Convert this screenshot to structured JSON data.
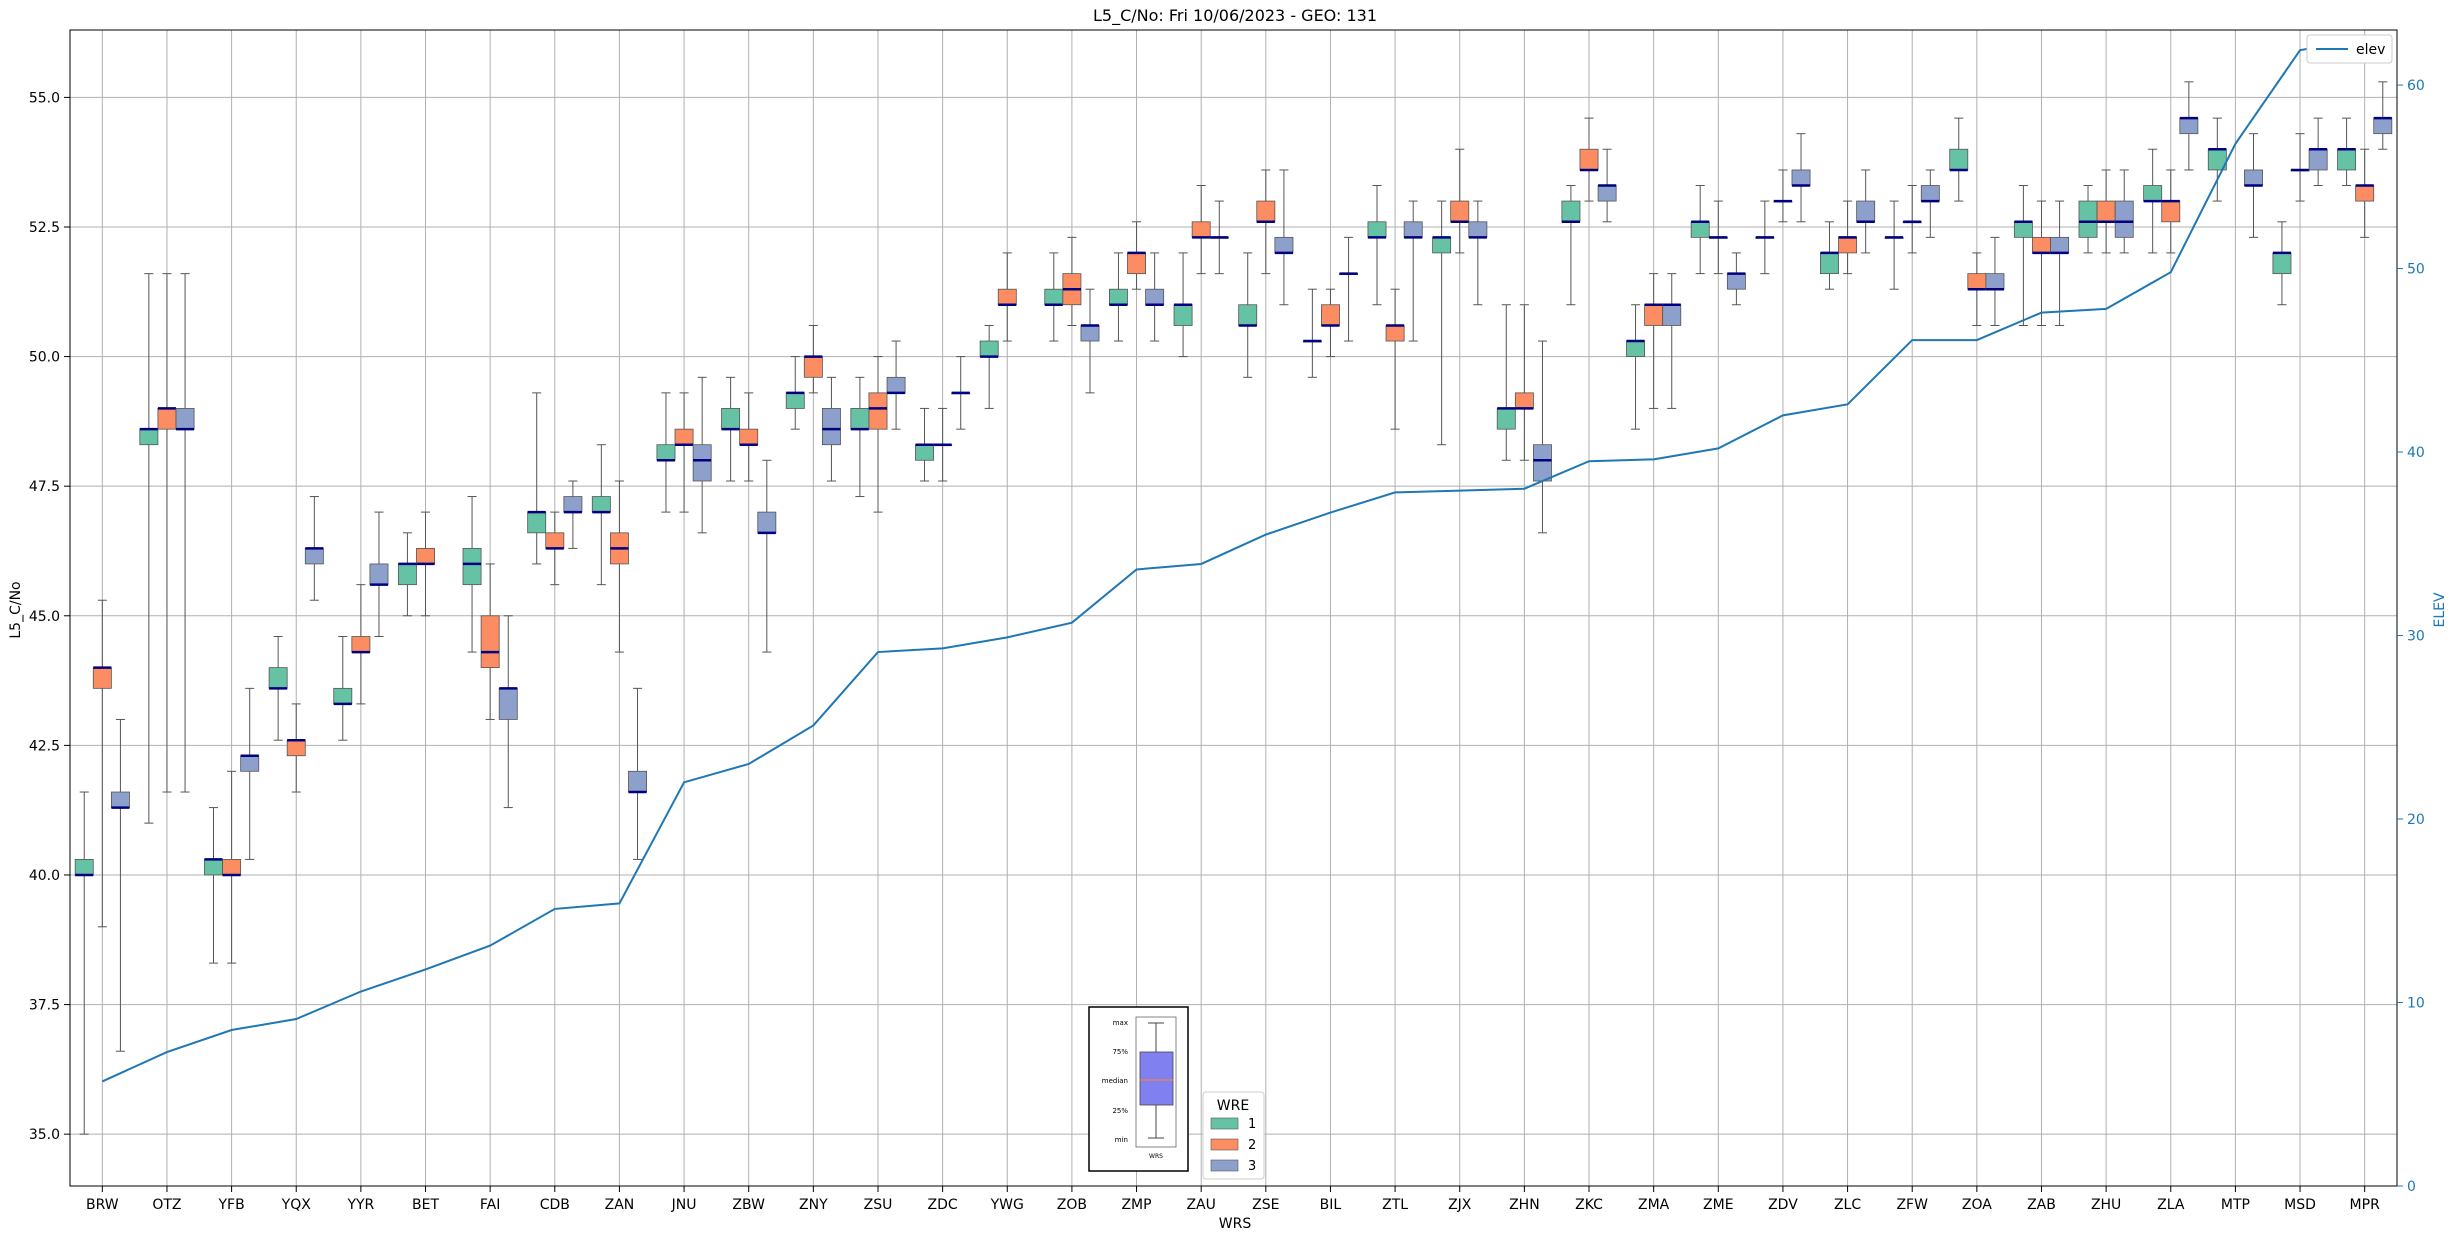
{
  "chart_data": {
    "type": "box",
    "title": "L5_C/No: Fri 10/06/2023 - GEO: 131",
    "xlabel": "WRS",
    "ylabel": "L5_C/No",
    "ylabel_right": "ELEV",
    "categories": [
      "BRW",
      "OTZ",
      "YFB",
      "YQX",
      "YYR",
      "BET",
      "FAI",
      "CDB",
      "ZAN",
      "JNU",
      "ZBW",
      "ZNY",
      "ZSU",
      "ZDC",
      "YWG",
      "ZOB",
      "ZMP",
      "ZAU",
      "ZSE",
      "BIL",
      "ZTL",
      "ZJX",
      "ZHN",
      "ZKC",
      "ZMA",
      "ZME",
      "ZDV",
      "ZLC",
      "ZFW",
      "ZOA",
      "ZAB",
      "ZHU",
      "ZLA",
      "MTP",
      "MSD",
      "MPR"
    ],
    "ylim": [
      34,
      56.3
    ],
    "yticks": [
      "35.0",
      "37.5",
      "40.0",
      "42.5",
      "45.0",
      "47.5",
      "50.0",
      "52.5",
      "55.0"
    ],
    "ylim_right": [
      0,
      63
    ],
    "yticks_right": [
      "0",
      "10",
      "20",
      "30",
      "40",
      "50",
      "60"
    ],
    "grid": true,
    "legend_title": "WRE",
    "legend_placement": "bottom-center",
    "series": [
      {
        "name": "1",
        "color": "#66c2a5"
      },
      {
        "name": "2",
        "color": "#fc8d62"
      },
      {
        "name": "3",
        "color": "#8da0cb"
      }
    ],
    "boxes": [
      {
        "cat": "BRW",
        "s": 0,
        "min": 35.0,
        "q1": 40.0,
        "med": 40.0,
        "q3": 40.3,
        "max": 41.6
      },
      {
        "cat": "BRW",
        "s": 1,
        "min": 39.0,
        "q1": 43.6,
        "med": 44.0,
        "q3": 44.0,
        "max": 45.3
      },
      {
        "cat": "BRW",
        "s": 2,
        "min": 36.6,
        "q1": 41.3,
        "med": 41.3,
        "q3": 41.6,
        "max": 43.0
      },
      {
        "cat": "OTZ",
        "s": 0,
        "min": 41.0,
        "q1": 48.3,
        "med": 48.6,
        "q3": 48.6,
        "max": 51.6
      },
      {
        "cat": "OTZ",
        "s": 1,
        "min": 41.6,
        "q1": 48.6,
        "med": 49.0,
        "q3": 49.0,
        "max": 51.6
      },
      {
        "cat": "OTZ",
        "s": 2,
        "min": 41.6,
        "q1": 48.6,
        "med": 48.6,
        "q3": 49.0,
        "max": 51.6
      },
      {
        "cat": "YFB",
        "s": 0,
        "min": 38.3,
        "q1": 40.0,
        "med": 40.3,
        "q3": 40.3,
        "max": 41.3
      },
      {
        "cat": "YFB",
        "s": 1,
        "min": 38.3,
        "q1": 40.0,
        "med": 40.0,
        "q3": 40.3,
        "max": 42.0
      },
      {
        "cat": "YFB",
        "s": 2,
        "min": 40.3,
        "q1": 42.0,
        "med": 42.3,
        "q3": 42.3,
        "max": 43.6
      },
      {
        "cat": "YQX",
        "s": 0,
        "min": 42.6,
        "q1": 43.6,
        "med": 43.6,
        "q3": 44.0,
        "max": 44.6
      },
      {
        "cat": "YQX",
        "s": 1,
        "min": 41.6,
        "q1": 42.3,
        "med": 42.6,
        "q3": 42.6,
        "max": 43.3
      },
      {
        "cat": "YQX",
        "s": 2,
        "min": 45.3,
        "q1": 46.0,
        "med": 46.3,
        "q3": 46.3,
        "max": 47.3
      },
      {
        "cat": "YYR",
        "s": 0,
        "min": 42.6,
        "q1": 43.3,
        "med": 43.3,
        "q3": 43.6,
        "max": 44.6
      },
      {
        "cat": "YYR",
        "s": 1,
        "min": 43.3,
        "q1": 44.3,
        "med": 44.3,
        "q3": 44.6,
        "max": 45.6
      },
      {
        "cat": "YYR",
        "s": 2,
        "min": 44.6,
        "q1": 45.6,
        "med": 45.6,
        "q3": 46.0,
        "max": 47.0
      },
      {
        "cat": "BET",
        "s": 0,
        "min": 45.0,
        "q1": 45.6,
        "med": 46.0,
        "q3": 46.0,
        "max": 46.6
      },
      {
        "cat": "BET",
        "s": 1,
        "min": 45.0,
        "q1": 46.0,
        "med": 46.0,
        "q3": 46.3,
        "max": 47.0
      },
      {
        "cat": "FAI",
        "s": 0,
        "min": 44.3,
        "q1": 45.6,
        "med": 46.0,
        "q3": 46.3,
        "max": 47.3
      },
      {
        "cat": "FAI",
        "s": 1,
        "min": 43.0,
        "q1": 44.0,
        "med": 44.3,
        "q3": 45.0,
        "max": 46.0
      },
      {
        "cat": "FAI",
        "s": 2,
        "min": 41.3,
        "q1": 43.0,
        "med": 43.6,
        "q3": 43.6,
        "max": 45.0
      },
      {
        "cat": "CDB",
        "s": 0,
        "min": 46.0,
        "q1": 46.6,
        "med": 47.0,
        "q3": 47.0,
        "max": 49.3
      },
      {
        "cat": "CDB",
        "s": 1,
        "min": 45.6,
        "q1": 46.3,
        "med": 46.3,
        "q3": 46.6,
        "max": 47.0
      },
      {
        "cat": "CDB",
        "s": 2,
        "min": 46.3,
        "q1": 47.0,
        "med": 47.0,
        "q3": 47.3,
        "max": 47.6
      },
      {
        "cat": "ZAN",
        "s": 0,
        "min": 45.6,
        "q1": 47.0,
        "med": 47.0,
        "q3": 47.3,
        "max": 48.3
      },
      {
        "cat": "ZAN",
        "s": 1,
        "min": 44.3,
        "q1": 46.0,
        "med": 46.3,
        "q3": 46.6,
        "max": 47.6
      },
      {
        "cat": "ZAN",
        "s": 2,
        "min": 40.3,
        "q1": 41.6,
        "med": 41.6,
        "q3": 42.0,
        "max": 43.6
      },
      {
        "cat": "JNU",
        "s": 0,
        "min": 47.0,
        "q1": 48.0,
        "med": 48.0,
        "q3": 48.3,
        "max": 49.3
      },
      {
        "cat": "JNU",
        "s": 1,
        "min": 47.0,
        "q1": 48.3,
        "med": 48.3,
        "q3": 48.6,
        "max": 49.3
      },
      {
        "cat": "JNU",
        "s": 2,
        "min": 46.6,
        "q1": 47.6,
        "med": 48.0,
        "q3": 48.3,
        "max": 49.6
      },
      {
        "cat": "ZBW",
        "s": 0,
        "min": 47.6,
        "q1": 48.6,
        "med": 48.6,
        "q3": 49.0,
        "max": 49.6
      },
      {
        "cat": "ZBW",
        "s": 1,
        "min": 47.6,
        "q1": 48.3,
        "med": 48.3,
        "q3": 48.6,
        "max": 49.3
      },
      {
        "cat": "ZBW",
        "s": 2,
        "min": 44.3,
        "q1": 46.6,
        "med": 46.6,
        "q3": 47.0,
        "max": 48.0
      },
      {
        "cat": "ZNY",
        "s": 0,
        "min": 48.6,
        "q1": 49.0,
        "med": 49.3,
        "q3": 49.3,
        "max": 50.0
      },
      {
        "cat": "ZNY",
        "s": 1,
        "min": 49.3,
        "q1": 49.6,
        "med": 50.0,
        "q3": 50.0,
        "max": 50.6
      },
      {
        "cat": "ZNY",
        "s": 2,
        "min": 47.6,
        "q1": 48.3,
        "med": 48.6,
        "q3": 49.0,
        "max": 49.6
      },
      {
        "cat": "ZSU",
        "s": 0,
        "min": 47.3,
        "q1": 48.6,
        "med": 48.6,
        "q3": 49.0,
        "max": 49.6
      },
      {
        "cat": "ZSU",
        "s": 1,
        "min": 47.0,
        "q1": 48.6,
        "med": 49.0,
        "q3": 49.3,
        "max": 50.0
      },
      {
        "cat": "ZSU",
        "s": 2,
        "min": 48.6,
        "q1": 49.3,
        "med": 49.3,
        "q3": 49.6,
        "max": 50.3
      },
      {
        "cat": "ZDC",
        "s": 0,
        "min": 47.6,
        "q1": 48.0,
        "med": 48.3,
        "q3": 48.3,
        "max": 49.0
      },
      {
        "cat": "ZDC",
        "s": 1,
        "min": 47.6,
        "q1": 48.3,
        "med": 48.3,
        "q3": 48.3,
        "max": 49.0
      },
      {
        "cat": "ZDC",
        "s": 2,
        "min": 48.6,
        "q1": 49.3,
        "med": 49.3,
        "q3": 49.3,
        "max": 50.0
      },
      {
        "cat": "YWG",
        "s": 0,
        "min": 49.0,
        "q1": 50.0,
        "med": 50.0,
        "q3": 50.3,
        "max": 50.6
      },
      {
        "cat": "YWG",
        "s": 1,
        "min": 50.3,
        "q1": 51.0,
        "med": 51.0,
        "q3": 51.3,
        "max": 52.0
      },
      {
        "cat": "ZOB",
        "s": 0,
        "min": 50.3,
        "q1": 51.0,
        "med": 51.0,
        "q3": 51.3,
        "max": 52.0
      },
      {
        "cat": "ZOB",
        "s": 1,
        "min": 50.6,
        "q1": 51.0,
        "med": 51.3,
        "q3": 51.6,
        "max": 52.3
      },
      {
        "cat": "ZOB",
        "s": 2,
        "min": 49.3,
        "q1": 50.3,
        "med": 50.6,
        "q3": 50.6,
        "max": 51.3
      },
      {
        "cat": "ZMP",
        "s": 0,
        "min": 50.3,
        "q1": 51.0,
        "med": 51.0,
        "q3": 51.3,
        "max": 52.0
      },
      {
        "cat": "ZMP",
        "s": 1,
        "min": 51.3,
        "q1": 51.6,
        "med": 52.0,
        "q3": 52.0,
        "max": 52.6
      },
      {
        "cat": "ZMP",
        "s": 2,
        "min": 50.3,
        "q1": 51.0,
        "med": 51.0,
        "q3": 51.3,
        "max": 52.0
      },
      {
        "cat": "ZAU",
        "s": 0,
        "min": 50.0,
        "q1": 50.6,
        "med": 51.0,
        "q3": 51.0,
        "max": 52.0
      },
      {
        "cat": "ZAU",
        "s": 1,
        "min": 51.6,
        "q1": 52.3,
        "med": 52.3,
        "q3": 52.6,
        "max": 53.3
      },
      {
        "cat": "ZAU",
        "s": 2,
        "min": 51.6,
        "q1": 52.3,
        "med": 52.3,
        "q3": 52.3,
        "max": 53.0
      },
      {
        "cat": "ZSE",
        "s": 0,
        "min": 49.6,
        "q1": 50.6,
        "med": 50.6,
        "q3": 51.0,
        "max": 52.0
      },
      {
        "cat": "ZSE",
        "s": 1,
        "min": 51.6,
        "q1": 52.6,
        "med": 52.6,
        "q3": 53.0,
        "max": 53.6
      },
      {
        "cat": "ZSE",
        "s": 2,
        "min": 51.0,
        "q1": 52.0,
        "med": 52.0,
        "q3": 52.3,
        "max": 53.6
      },
      {
        "cat": "BIL",
        "s": 0,
        "min": 49.6,
        "q1": 50.3,
        "med": 50.3,
        "q3": 50.3,
        "max": 51.3
      },
      {
        "cat": "BIL",
        "s": 1,
        "min": 50.0,
        "q1": 50.6,
        "med": 50.6,
        "q3": 51.0,
        "max": 51.3
      },
      {
        "cat": "BIL",
        "s": 2,
        "min": 50.3,
        "q1": 51.6,
        "med": 51.6,
        "q3": 51.6,
        "max": 52.3
      },
      {
        "cat": "ZTL",
        "s": 0,
        "min": 51.0,
        "q1": 52.3,
        "med": 52.3,
        "q3": 52.6,
        "max": 53.3
      },
      {
        "cat": "ZTL",
        "s": 1,
        "min": 48.6,
        "q1": 50.3,
        "med": 50.6,
        "q3": 50.6,
        "max": 51.3
      },
      {
        "cat": "ZTL",
        "s": 2,
        "min": 50.3,
        "q1": 52.3,
        "med": 52.3,
        "q3": 52.6,
        "max": 53.0
      },
      {
        "cat": "ZJX",
        "s": 0,
        "min": 48.3,
        "q1": 52.0,
        "med": 52.3,
        "q3": 52.3,
        "max": 53.0
      },
      {
        "cat": "ZJX",
        "s": 1,
        "min": 52.0,
        "q1": 52.6,
        "med": 52.6,
        "q3": 53.0,
        "max": 54.0
      },
      {
        "cat": "ZJX",
        "s": 2,
        "min": 51.0,
        "q1": 52.3,
        "med": 52.3,
        "q3": 52.6,
        "max": 53.0
      },
      {
        "cat": "ZHN",
        "s": 0,
        "min": 48.0,
        "q1": 48.6,
        "med": 49.0,
        "q3": 49.0,
        "max": 51.0
      },
      {
        "cat": "ZHN",
        "s": 1,
        "min": 48.0,
        "q1": 49.0,
        "med": 49.0,
        "q3": 49.3,
        "max": 51.0
      },
      {
        "cat": "ZHN",
        "s": 2,
        "min": 46.6,
        "q1": 47.6,
        "med": 48.0,
        "q3": 48.3,
        "max": 50.3
      },
      {
        "cat": "ZKC",
        "s": 0,
        "min": 51.0,
        "q1": 52.6,
        "med": 52.6,
        "q3": 53.0,
        "max": 53.3
      },
      {
        "cat": "ZKC",
        "s": 1,
        "min": 53.0,
        "q1": 53.6,
        "med": 53.6,
        "q3": 54.0,
        "max": 54.6
      },
      {
        "cat": "ZKC",
        "s": 2,
        "min": 52.6,
        "q1": 53.0,
        "med": 53.3,
        "q3": 53.3,
        "max": 54.0
      },
      {
        "cat": "ZMA",
        "s": 0,
        "min": 48.6,
        "q1": 50.0,
        "med": 50.3,
        "q3": 50.3,
        "max": 51.0
      },
      {
        "cat": "ZMA",
        "s": 1,
        "min": 49.0,
        "q1": 50.6,
        "med": 51.0,
        "q3": 51.0,
        "max": 51.6
      },
      {
        "cat": "ZMA",
        "s": 2,
        "min": 49.0,
        "q1": 50.6,
        "med": 51.0,
        "q3": 51.0,
        "max": 51.6
      },
      {
        "cat": "ZME",
        "s": 0,
        "min": 51.6,
        "q1": 52.3,
        "med": 52.6,
        "q3": 52.6,
        "max": 53.3
      },
      {
        "cat": "ZME",
        "s": 1,
        "min": 51.6,
        "q1": 52.3,
        "med": 52.3,
        "q3": 52.3,
        "max": 53.0
      },
      {
        "cat": "ZME",
        "s": 2,
        "min": 51.0,
        "q1": 51.3,
        "med": 51.6,
        "q3": 51.6,
        "max": 52.0
      },
      {
        "cat": "ZDV",
        "s": 0,
        "min": 51.6,
        "q1": 52.3,
        "med": 52.3,
        "q3": 52.3,
        "max": 53.0
      },
      {
        "cat": "ZDV",
        "s": 1,
        "min": 52.6,
        "q1": 53.0,
        "med": 53.0,
        "q3": 53.0,
        "max": 53.6
      },
      {
        "cat": "ZDV",
        "s": 2,
        "min": 52.6,
        "q1": 53.3,
        "med": 53.3,
        "q3": 53.6,
        "max": 54.3
      },
      {
        "cat": "ZLC",
        "s": 0,
        "min": 51.3,
        "q1": 51.6,
        "med": 52.0,
        "q3": 52.0,
        "max": 52.6
      },
      {
        "cat": "ZLC",
        "s": 1,
        "min": 51.6,
        "q1": 52.0,
        "med": 52.3,
        "q3": 52.3,
        "max": 53.0
      },
      {
        "cat": "ZLC",
        "s": 2,
        "min": 52.0,
        "q1": 52.6,
        "med": 52.6,
        "q3": 53.0,
        "max": 53.6
      },
      {
        "cat": "ZFW",
        "s": 0,
        "min": 51.3,
        "q1": 52.3,
        "med": 52.3,
        "q3": 52.3,
        "max": 53.0
      },
      {
        "cat": "ZFW",
        "s": 1,
        "min": 52.0,
        "q1": 52.6,
        "med": 52.6,
        "q3": 52.6,
        "max": 53.3
      },
      {
        "cat": "ZFW",
        "s": 2,
        "min": 52.3,
        "q1": 53.0,
        "med": 53.0,
        "q3": 53.3,
        "max": 53.6
      },
      {
        "cat": "ZOA",
        "s": 0,
        "min": 53.0,
        "q1": 53.6,
        "med": 53.6,
        "q3": 54.0,
        "max": 54.6
      },
      {
        "cat": "ZOA",
        "s": 1,
        "min": 50.6,
        "q1": 51.3,
        "med": 51.3,
        "q3": 51.6,
        "max": 52.0
      },
      {
        "cat": "ZOA",
        "s": 2,
        "min": 50.6,
        "q1": 51.3,
        "med": 51.3,
        "q3": 51.6,
        "max": 52.3
      },
      {
        "cat": "ZAB",
        "s": 0,
        "min": 50.6,
        "q1": 52.3,
        "med": 52.6,
        "q3": 52.6,
        "max": 53.3
      },
      {
        "cat": "ZAB",
        "s": 1,
        "min": 50.6,
        "q1": 52.0,
        "med": 52.0,
        "q3": 52.3,
        "max": 53.0
      },
      {
        "cat": "ZAB",
        "s": 2,
        "min": 50.6,
        "q1": 52.0,
        "med": 52.0,
        "q3": 52.3,
        "max": 53.0
      },
      {
        "cat": "ZHU",
        "s": 0,
        "min": 52.0,
        "q1": 52.3,
        "med": 52.6,
        "q3": 53.0,
        "max": 53.3
      },
      {
        "cat": "ZHU",
        "s": 1,
        "min": 52.0,
        "q1": 52.6,
        "med": 52.6,
        "q3": 53.0,
        "max": 53.6
      },
      {
        "cat": "ZHU",
        "s": 2,
        "min": 52.0,
        "q1": 52.3,
        "med": 52.6,
        "q3": 53.0,
        "max": 53.6
      },
      {
        "cat": "ZLA",
        "s": 0,
        "min": 52.0,
        "q1": 53.0,
        "med": 53.0,
        "q3": 53.3,
        "max": 54.0
      },
      {
        "cat": "ZLA",
        "s": 1,
        "min": 52.0,
        "q1": 52.6,
        "med": 53.0,
        "q3": 53.0,
        "max": 53.6
      },
      {
        "cat": "ZLA",
        "s": 2,
        "min": 53.6,
        "q1": 54.3,
        "med": 54.6,
        "q3": 54.6,
        "max": 55.3
      },
      {
        "cat": "MTP",
        "s": 0,
        "min": 53.0,
        "q1": 53.6,
        "med": 54.0,
        "q3": 54.0,
        "max": 54.6
      },
      {
        "cat": "MTP",
        "s": 2,
        "min": 52.3,
        "q1": 53.3,
        "med": 53.3,
        "q3": 53.6,
        "max": 54.3
      },
      {
        "cat": "MSD",
        "s": 0,
        "min": 51.0,
        "q1": 51.6,
        "med": 52.0,
        "q3": 52.0,
        "max": 52.6
      },
      {
        "cat": "MSD",
        "s": 1,
        "min": 53.0,
        "q1": 53.6,
        "med": 53.6,
        "q3": 53.6,
        "max": 54.3
      },
      {
        "cat": "MSD",
        "s": 2,
        "min": 53.3,
        "q1": 53.6,
        "med": 54.0,
        "q3": 54.0,
        "max": 54.6
      },
      {
        "cat": "MPR",
        "s": 0,
        "min": 53.3,
        "q1": 53.6,
        "med": 54.0,
        "q3": 54.0,
        "max": 54.6
      },
      {
        "cat": "MPR",
        "s": 1,
        "min": 52.3,
        "q1": 53.0,
        "med": 53.3,
        "q3": 53.3,
        "max": 54.0
      },
      {
        "cat": "MPR",
        "s": 2,
        "min": 54.0,
        "q1": 54.3,
        "med": 54.6,
        "q3": 54.6,
        "max": 55.3
      }
    ],
    "elev_line": {
      "name": "elev",
      "color": "#1f77b4",
      "values": [
        5.7,
        7.3,
        8.5,
        9.1,
        10.6,
        11.8,
        13.1,
        15.1,
        15.4,
        22.0,
        23.0,
        25.1,
        29.1,
        29.3,
        29.9,
        30.7,
        33.6,
        33.9,
        35.5,
        36.7,
        37.8,
        37.9,
        38.0,
        39.5,
        39.6,
        40.2,
        42.0,
        42.6,
        46.1,
        46.1,
        47.6,
        47.8,
        49.8,
        56.8,
        61.9,
        62.5
      ]
    },
    "key_box": {
      "labels": [
        "max",
        "75%",
        "median",
        "25%",
        "min"
      ],
      "caption": "WRS",
      "color": "#8080f0"
    }
  }
}
